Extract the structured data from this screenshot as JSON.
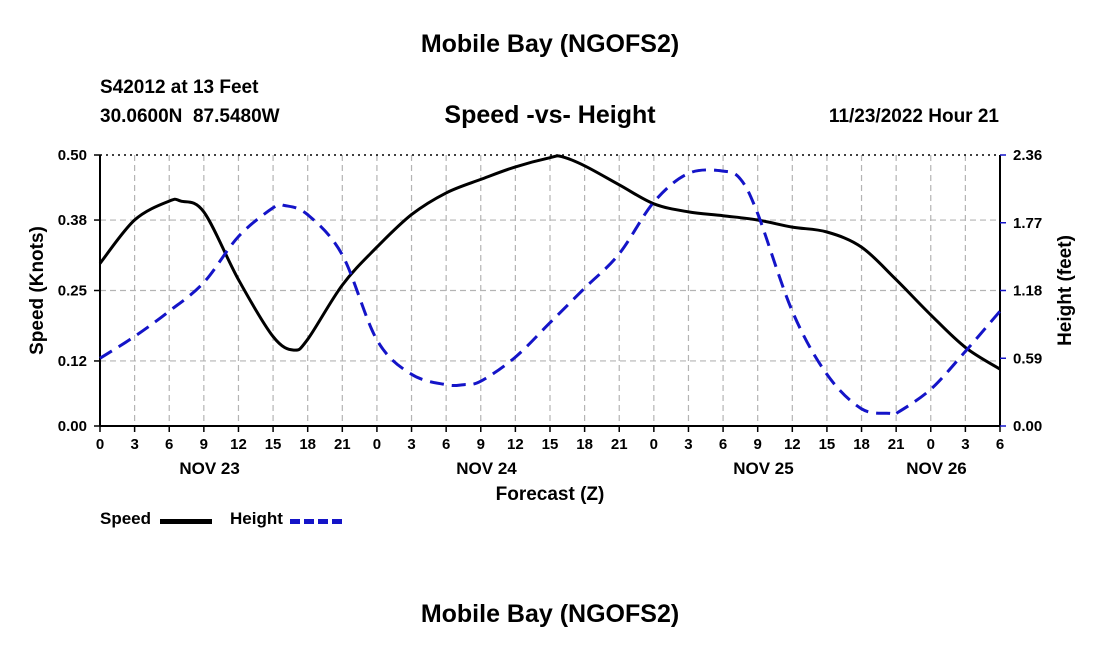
{
  "header": {
    "title": "Mobile Bay (NGOFS2)",
    "station": "S42012 at 13 Feet",
    "coords": "30.0600N  87.5480W",
    "subtitle": "Speed -vs- Height",
    "timestamp": "11/23/2022 Hour 21"
  },
  "legend": {
    "speed_label": "Speed",
    "height_label": "Height"
  },
  "footer": {
    "title": "Mobile Bay (NGOFS2)"
  },
  "colors": {
    "speed": "#000000",
    "height": "#1414c8",
    "grid": "#b4b4b4"
  },
  "chart_data": {
    "type": "line",
    "title": "Speed -vs- Height",
    "xlabel": "Forecast (Z)",
    "ylabel": "Speed (Knots)",
    "y2label": "Height (feet)",
    "x_unit": "hours since NOV 23 00Z",
    "xlim": [
      0,
      78
    ],
    "ylim": [
      0,
      0.5
    ],
    "y2lim": [
      0,
      2.36
    ],
    "x_ticks": [
      0,
      3,
      6,
      9,
      12,
      15,
      18,
      21,
      24,
      27,
      30,
      33,
      36,
      39,
      42,
      45,
      48,
      51,
      54,
      57,
      60,
      63,
      66,
      69,
      72,
      75,
      78
    ],
    "x_tick_labels": [
      "0",
      "3",
      "6",
      "9",
      "12",
      "15",
      "18",
      "21",
      "0",
      "3",
      "6",
      "9",
      "12",
      "15",
      "18",
      "21",
      "0",
      "3",
      "6",
      "9",
      "12",
      "15",
      "18",
      "21",
      "0",
      "3",
      "6"
    ],
    "date_labels": [
      {
        "label": "NOV 23",
        "x": 9.5
      },
      {
        "label": "NOV 24",
        "x": 33.5
      },
      {
        "label": "NOV 25",
        "x": 57.5
      },
      {
        "label": "NOV 26",
        "x": 72.5
      }
    ],
    "y_ticks": [
      0.0,
      0.12,
      0.25,
      0.38,
      0.5
    ],
    "y_tick_labels": [
      "0.00",
      "0.12",
      "0.25",
      "0.38",
      "0.50"
    ],
    "y2_ticks": [
      0.0,
      0.59,
      1.18,
      1.77,
      2.36
    ],
    "y2_tick_labels": [
      "0.00",
      "0.59",
      "1.18",
      "1.77",
      "2.36"
    ],
    "series": [
      {
        "name": "Speed",
        "axis": "left",
        "style": "solid",
        "x": [
          0,
          3,
          6,
          7,
          9,
          12,
          15,
          16.8,
          18,
          21,
          24,
          27,
          30,
          33,
          36,
          39,
          40,
          42,
          45,
          48,
          51,
          54,
          57,
          60,
          63,
          66,
          69,
          72,
          75,
          78
        ],
        "y": [
          0.3,
          0.38,
          0.415,
          0.415,
          0.395,
          0.27,
          0.165,
          0.14,
          0.16,
          0.26,
          0.33,
          0.39,
          0.43,
          0.455,
          0.478,
          0.495,
          0.497,
          0.48,
          0.445,
          0.41,
          0.395,
          0.388,
          0.38,
          0.367,
          0.358,
          0.33,
          0.27,
          0.205,
          0.145,
          0.105
        ]
      },
      {
        "name": "Height",
        "axis": "right",
        "style": "dashed",
        "x": [
          0,
          3,
          6,
          9,
          12,
          15,
          16,
          18,
          21,
          24,
          27,
          30,
          31.5,
          33,
          36,
          39,
          42,
          45,
          48,
          51,
          54,
          55.5,
          57,
          60,
          63,
          66,
          68.5,
          69,
          72,
          75,
          78
        ],
        "y": [
          0.59,
          0.78,
          1.0,
          1.25,
          1.65,
          1.9,
          1.92,
          1.84,
          1.49,
          0.75,
          0.45,
          0.36,
          0.36,
          0.39,
          0.6,
          0.9,
          1.2,
          1.5,
          1.95,
          2.2,
          2.22,
          2.15,
          1.85,
          1.0,
          0.45,
          0.15,
          0.11,
          0.11,
          0.32,
          0.65,
          1.0
        ]
      }
    ]
  }
}
